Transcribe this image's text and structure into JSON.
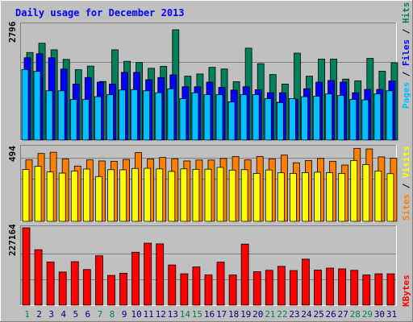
{
  "chart_data": [
    {
      "type": "bar",
      "title": "Daily usage for December 2013",
      "categories": [
        "1",
        "2",
        "3",
        "4",
        "5",
        "6",
        "7",
        "8",
        "9",
        "10",
        "11",
        "12",
        "13",
        "14",
        "15",
        "16",
        "17",
        "18",
        "19",
        "20",
        "21",
        "22",
        "23",
        "24",
        "25",
        "26",
        "27",
        "28",
        "29",
        "30",
        "31"
      ],
      "weekend_days": [
        "1",
        "7",
        "8",
        "14",
        "15",
        "21",
        "22",
        "28",
        "29"
      ],
      "y_max_label": "2796",
      "ylim": [
        0,
        2796
      ],
      "series": [
        {
          "name": "Hits",
          "color": "#00805c",
          "values": [
            2220,
            2456,
            2288,
            2045,
            1783,
            1875,
            1486,
            2288,
            1997,
            1964,
            1820,
            1870,
            2796,
            1620,
            1676,
            1844,
            1802,
            1480,
            2330,
            1938,
            1662,
            1420,
            2204,
            1620,
            2054,
            2054,
            1545,
            1502,
            2071,
            1746,
            1961
          ]
        },
        {
          "name": "Files",
          "color": "#0000ff",
          "values": [
            2087,
            2187,
            2087,
            1800,
            1421,
            1586,
            1469,
            1418,
            1717,
            1717,
            1531,
            1586,
            1653,
            1352,
            1352,
            1469,
            1335,
            1268,
            1352,
            1276,
            1200,
            1200,
            1038,
            1301,
            1469,
            1511,
            1469,
            1200,
            1284,
            1284,
            1499
          ]
        },
        {
          "name": "Pages",
          "color": "#00c0ff",
          "values": [
            1790,
            1740,
            1250,
            1250,
            1030,
            1030,
            1100,
            1150,
            1270,
            1280,
            1250,
            1200,
            1300,
            1050,
            1200,
            1150,
            1150,
            965,
            1150,
            1150,
            1050,
            950,
            1050,
            1100,
            1110,
            1170,
            1130,
            1030,
            1020,
            1170,
            1250
          ]
        }
      ]
    },
    {
      "type": "bar",
      "categories": [
        "1",
        "2",
        "3",
        "4",
        "5",
        "6",
        "7",
        "8",
        "9",
        "10",
        "11",
        "12",
        "13",
        "14",
        "15",
        "16",
        "17",
        "18",
        "19",
        "20",
        "21",
        "22",
        "23",
        "24",
        "25",
        "26",
        "27",
        "28",
        "29",
        "30",
        "31"
      ],
      "y_max_label": "494",
      "ylim": [
        0,
        494
      ],
      "series": [
        {
          "name": "Visits",
          "color": "#ff8000",
          "values": [
            410,
            453,
            461,
            416,
            369,
            410,
            403,
            401,
            413,
            459,
            416,
            426,
            418,
            403,
            409,
            409,
            420,
            432,
            410,
            433,
            417,
            442,
            391,
            406,
            420,
            401,
            376,
            487,
            483,
            430,
            422
          ]
        },
        {
          "name": "Sites",
          "color": "#ffff00",
          "values": [
            346,
            367,
            330,
            322,
            336,
            349,
            299,
            345,
            344,
            353,
            354,
            350,
            333,
            350,
            347,
            348,
            360,
            342,
            345,
            320,
            343,
            324,
            320,
            325,
            328,
            325,
            320,
            406,
            379,
            336,
            318
          ]
        }
      ]
    },
    {
      "type": "bar",
      "categories": [
        "1",
        "2",
        "3",
        "4",
        "5",
        "6",
        "7",
        "8",
        "9",
        "10",
        "11",
        "12",
        "13",
        "14",
        "15",
        "16",
        "17",
        "18",
        "19",
        "20",
        "21",
        "22",
        "23",
        "24",
        "25",
        "26",
        "27",
        "28",
        "29",
        "30",
        "31"
      ],
      "y_max_label": "227164",
      "ylim": [
        0,
        227164
      ],
      "series": [
        {
          "name": "KBytes",
          "color": "#ff0000",
          "values": [
            227164,
            162900,
            126900,
            97300,
            127700,
            104500,
            145000,
            87400,
            93800,
            155500,
            182100,
            180100,
            118000,
            92100,
            112100,
            88600,
            126500,
            88600,
            179400,
            98100,
            102200,
            113900,
            101600,
            135000,
            102800,
            108800,
            106500,
            102300,
            88600,
            92000,
            92000
          ]
        }
      ]
    }
  ]
}
